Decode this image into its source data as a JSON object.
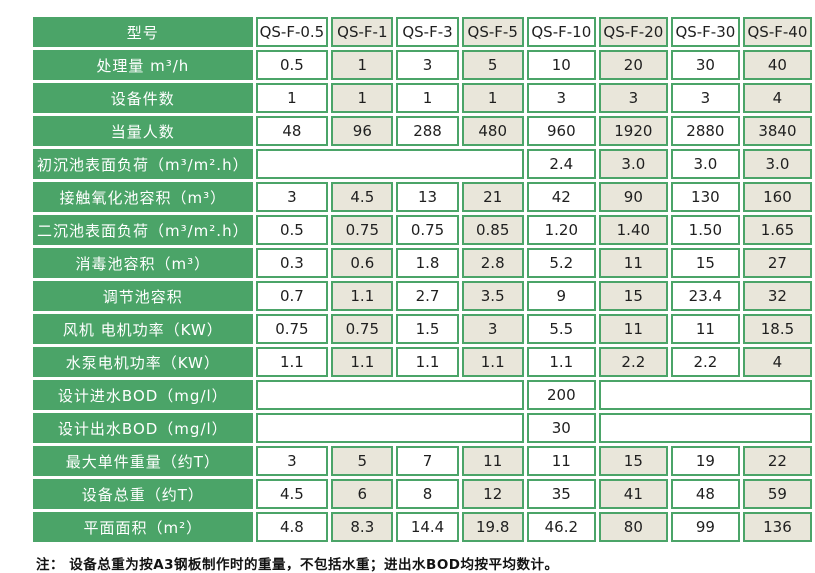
{
  "colors": {
    "green": "#4ba468",
    "beige": "#e9e6da",
    "text": "#1f1f1f"
  },
  "table": {
    "header": {
      "label": "型号",
      "models": [
        "QS-F-0.5",
        "QS-F-1",
        "QS-F-3",
        "QS-F-5",
        "QS-F-10",
        "QS-F-20",
        "QS-F-30",
        "QS-F-40"
      ]
    },
    "rows": [
      {
        "label": "处理量 m³/h",
        "cells": [
          {
            "text": "0.5"
          },
          {
            "text": "1"
          },
          {
            "text": "3"
          },
          {
            "text": "5"
          },
          {
            "text": "10"
          },
          {
            "text": "20"
          },
          {
            "text": "30"
          },
          {
            "text": "40"
          }
        ]
      },
      {
        "label": "设备件数",
        "cells": [
          {
            "text": "1"
          },
          {
            "text": "1"
          },
          {
            "text": "1"
          },
          {
            "text": "1"
          },
          {
            "text": "3"
          },
          {
            "text": "3"
          },
          {
            "text": "3"
          },
          {
            "text": "4"
          }
        ]
      },
      {
        "label": "当量人数",
        "cells": [
          {
            "text": "48"
          },
          {
            "text": "96"
          },
          {
            "text": "288"
          },
          {
            "text": "480"
          },
          {
            "text": "960"
          },
          {
            "text": "1920"
          },
          {
            "text": "2880"
          },
          {
            "text": "3840"
          }
        ]
      },
      {
        "label": "初沉池表面负荷（m³/m².h）",
        "cells": [
          {
            "text": "",
            "span": 4
          },
          {
            "text": "2.4"
          },
          {
            "text": "3.0"
          },
          {
            "text": "3.0"
          },
          {
            "text": "3.0"
          }
        ]
      },
      {
        "label": "接触氧化池容积（m³）",
        "cells": [
          {
            "text": "3"
          },
          {
            "text": "4.5"
          },
          {
            "text": "13"
          },
          {
            "text": "21"
          },
          {
            "text": "42"
          },
          {
            "text": "90"
          },
          {
            "text": "130"
          },
          {
            "text": "160"
          }
        ]
      },
      {
        "label": "二沉池表面负荷（m³/m².h）",
        "cells": [
          {
            "text": "0.5"
          },
          {
            "text": "0.75"
          },
          {
            "text": "0.75"
          },
          {
            "text": "0.85"
          },
          {
            "text": "1.20"
          },
          {
            "text": "1.40"
          },
          {
            "text": "1.50"
          },
          {
            "text": "1.65"
          }
        ]
      },
      {
        "label": "消毒池容积（m³）",
        "cells": [
          {
            "text": "0.3"
          },
          {
            "text": "0.6"
          },
          {
            "text": "1.8"
          },
          {
            "text": "2.8"
          },
          {
            "text": "5.2"
          },
          {
            "text": "11"
          },
          {
            "text": "15"
          },
          {
            "text": "27"
          }
        ]
      },
      {
        "label": "调节池容积",
        "cells": [
          {
            "text": "0.7"
          },
          {
            "text": "1.1"
          },
          {
            "text": "2.7"
          },
          {
            "text": "3.5"
          },
          {
            "text": "9"
          },
          {
            "text": "15"
          },
          {
            "text": "23.4"
          },
          {
            "text": "32"
          }
        ]
      },
      {
        "label": "风机 电机功率（KW）",
        "cells": [
          {
            "text": "0.75"
          },
          {
            "text": "0.75"
          },
          {
            "text": "1.5"
          },
          {
            "text": "3"
          },
          {
            "text": "5.5"
          },
          {
            "text": "11"
          },
          {
            "text": "11"
          },
          {
            "text": "18.5"
          }
        ]
      },
      {
        "label": "水泵电机功率（KW）",
        "cells": [
          {
            "text": "1.1"
          },
          {
            "text": "1.1"
          },
          {
            "text": "1.1"
          },
          {
            "text": "1.1"
          },
          {
            "text": "1.1"
          },
          {
            "text": "2.2"
          },
          {
            "text": "2.2"
          },
          {
            "text": "4"
          }
        ]
      },
      {
        "label": "设计进水BOD（mg/l）",
        "cells": [
          {
            "text": "",
            "span": 4
          },
          {
            "text": "200"
          },
          {
            "text": "",
            "span": 3
          }
        ]
      },
      {
        "label": "设计出水BOD（mg/l）",
        "cells": [
          {
            "text": "",
            "span": 4
          },
          {
            "text": "30"
          },
          {
            "text": "",
            "span": 3
          }
        ]
      },
      {
        "label": "最大单件重量（约T）",
        "cells": [
          {
            "text": "3"
          },
          {
            "text": "5"
          },
          {
            "text": "7"
          },
          {
            "text": "11"
          },
          {
            "text": "11"
          },
          {
            "text": "15"
          },
          {
            "text": "19"
          },
          {
            "text": "22"
          }
        ]
      },
      {
        "label": "设备总重（约T）",
        "cells": [
          {
            "text": "4.5"
          },
          {
            "text": "6"
          },
          {
            "text": "8"
          },
          {
            "text": "12"
          },
          {
            "text": "35"
          },
          {
            "text": "41"
          },
          {
            "text": "48"
          },
          {
            "text": "59"
          }
        ]
      },
      {
        "label": "平面面积（m²）",
        "cells": [
          {
            "text": "4.8"
          },
          {
            "text": "8.3"
          },
          {
            "text": "14.4"
          },
          {
            "text": "19.8"
          },
          {
            "text": "46.2"
          },
          {
            "text": "80"
          },
          {
            "text": "99"
          },
          {
            "text": "136"
          }
        ]
      }
    ]
  },
  "note": "注： 设备总重为按A3钢板制作时的重量，不包括水重；进出水BOD均按平均数计。",
  "chart_data": {
    "type": "table",
    "title": "",
    "columns": [
      "型号",
      "QS-F-0.5",
      "QS-F-1",
      "QS-F-3",
      "QS-F-5",
      "QS-F-10",
      "QS-F-20",
      "QS-F-30",
      "QS-F-40"
    ],
    "rows": [
      [
        "处理量 m³/h",
        "0.5",
        "1",
        "3",
        "5",
        "10",
        "20",
        "30",
        "40"
      ],
      [
        "设备件数",
        "1",
        "1",
        "1",
        "1",
        "3",
        "3",
        "3",
        "4"
      ],
      [
        "当量人数",
        "48",
        "96",
        "288",
        "480",
        "960",
        "1920",
        "2880",
        "3840"
      ],
      [
        "初沉池表面负荷（m³/m².h）",
        "",
        "",
        "",
        "",
        "2.4",
        "3.0",
        "3.0",
        "3.0"
      ],
      [
        "接触氧化池容积（m³）",
        "3",
        "4.5",
        "13",
        "21",
        "42",
        "90",
        "130",
        "160"
      ],
      [
        "二沉池表面负荷（m³/m².h）",
        "0.5",
        "0.75",
        "0.75",
        "0.85",
        "1.20",
        "1.40",
        "1.50",
        "1.65"
      ],
      [
        "消毒池容积（m³）",
        "0.3",
        "0.6",
        "1.8",
        "2.8",
        "5.2",
        "11",
        "15",
        "27"
      ],
      [
        "调节池容积",
        "0.7",
        "1.1",
        "2.7",
        "3.5",
        "9",
        "15",
        "23.4",
        "32"
      ],
      [
        "风机 电机功率（KW）",
        "0.75",
        "0.75",
        "1.5",
        "3",
        "5.5",
        "11",
        "11",
        "18.5"
      ],
      [
        "水泵电机功率（KW）",
        "1.1",
        "1.1",
        "1.1",
        "1.1",
        "1.1",
        "2.2",
        "2.2",
        "4"
      ],
      [
        "设计进水BOD（mg/l）",
        "",
        "",
        "",
        "",
        "200",
        "",
        "",
        ""
      ],
      [
        "设计出水BOD（mg/l）",
        "",
        "",
        "",
        "",
        "30",
        "",
        "",
        ""
      ],
      [
        "最大单件重量（约T）",
        "3",
        "5",
        "7",
        "11",
        "11",
        "15",
        "19",
        "22"
      ],
      [
        "设备总重（约T）",
        "4.5",
        "6",
        "8",
        "12",
        "35",
        "41",
        "48",
        "59"
      ],
      [
        "平面面积（m²）",
        "4.8",
        "8.3",
        "14.4",
        "19.8",
        "46.2",
        "80",
        "99",
        "136"
      ]
    ]
  }
}
